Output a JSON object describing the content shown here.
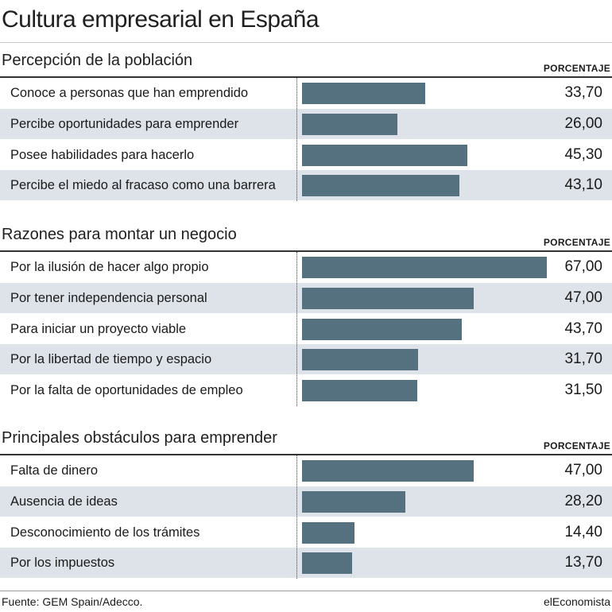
{
  "title": "Cultura empresarial en España",
  "footer": {
    "source": "Fuente: GEM Spain/Adecco.",
    "brand": "elEconomista"
  },
  "colors": {
    "bar": "#55707f",
    "row_shade": "#dee3ea"
  },
  "chart_data": [
    {
      "type": "bar",
      "orientation": "horizontal",
      "title": "Percepción de la población",
      "value_header": "PORCENTAJE",
      "categories": [
        "Conoce a personas que han emprendido",
        "Percibe oportunidades para emprender",
        "Posee habilidades para hacerlo",
        "Percibe el miedo al fracaso como una barrera"
      ],
      "values": [
        33.7,
        26.0,
        45.3,
        43.1
      ],
      "value_labels": [
        "33,70",
        "26,00",
        "45,30",
        "43,10"
      ],
      "xlim": [
        0,
        70
      ],
      "grid": false
    },
    {
      "type": "bar",
      "orientation": "horizontal",
      "title": "Razones para montar un negocio",
      "value_header": "PORCENTAJE",
      "categories": [
        "Por la ilusión de hacer algo propio",
        "Por tener independencia personal",
        "Para iniciar un proyecto viable",
        "Por la libertad de tiempo y espacio",
        "Por la falta de oportunidades de empleo"
      ],
      "values": [
        67.0,
        47.0,
        43.7,
        31.7,
        31.5
      ],
      "value_labels": [
        "67,00",
        "47,00",
        "43,70",
        "31,70",
        "31,50"
      ],
      "xlim": [
        0,
        70
      ],
      "grid": false
    },
    {
      "type": "bar",
      "orientation": "horizontal",
      "title": "Principales obstáculos para emprender",
      "value_header": "PORCENTAJE",
      "categories": [
        "Falta de dinero",
        "Ausencia de ideas",
        "Desconocimiento de los trámites",
        "Por los impuestos"
      ],
      "values": [
        47.0,
        28.2,
        14.4,
        13.7
      ],
      "value_labels": [
        "47,00",
        "28,20",
        "14,40",
        "13,70"
      ],
      "xlim": [
        0,
        70
      ],
      "grid": false
    }
  ]
}
